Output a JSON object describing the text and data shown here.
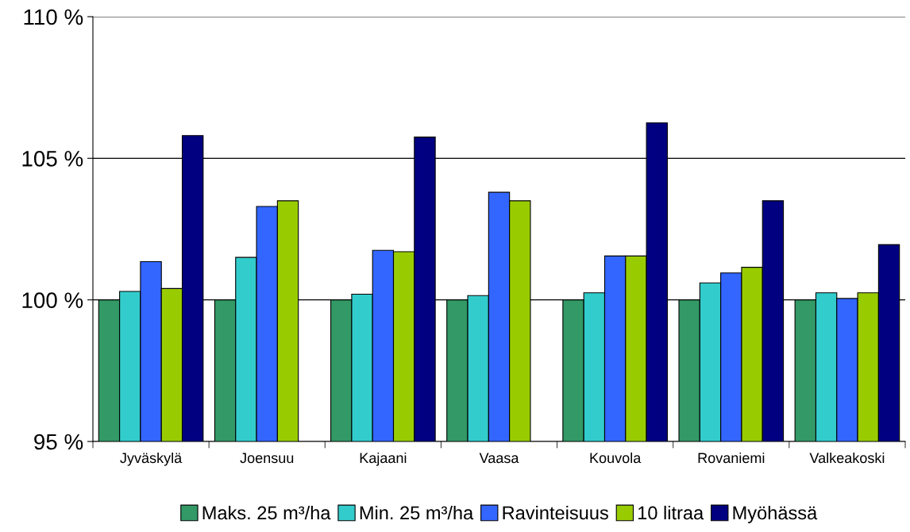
{
  "chart_data": {
    "type": "bar",
    "categories": [
      "Jyväskylä",
      "Joensuu",
      "Kajaani",
      "Vaasa",
      "Kouvola",
      "Rovaniemi",
      "Valkeakoski"
    ],
    "series": [
      {
        "name": "Maks. 25 m³/ha",
        "color": "#339966",
        "values": [
          100,
          100,
          100,
          100,
          100,
          100,
          100
        ]
      },
      {
        "name": "Min. 25 m³/ha",
        "color": "#33cccc",
        "values": [
          100.3,
          101.5,
          100.2,
          100.15,
          100.25,
          100.6,
          100.25
        ]
      },
      {
        "name": "Ravinteisuus",
        "color": "#3366ff",
        "values": [
          101.35,
          103.3,
          101.75,
          103.8,
          101.55,
          100.95,
          100.05
        ]
      },
      {
        "name": "10 litraa",
        "color": "#99cc00",
        "values": [
          100.4,
          103.5,
          101.7,
          103.5,
          101.55,
          101.15,
          100.25
        ]
      },
      {
        "name": "Myöhässä",
        "color": "#000080",
        "values": [
          105.8,
          null,
          105.75,
          null,
          106.25,
          103.5,
          101.95
        ]
      }
    ],
    "ylim": [
      95,
      110
    ],
    "yticks": [
      {
        "value": 95,
        "label": "95 %"
      },
      {
        "value": 100,
        "label": "100 %"
      },
      {
        "value": 105,
        "label": "105 %"
      },
      {
        "value": 110,
        "label": "110 %"
      }
    ],
    "grid": "y",
    "legend": "bottom"
  }
}
